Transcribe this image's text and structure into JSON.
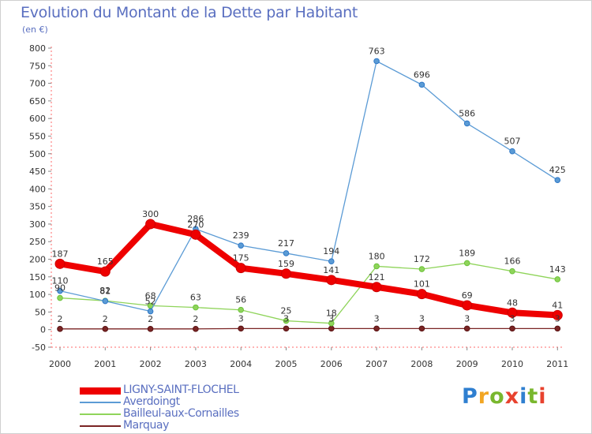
{
  "header": {
    "title": "Evolution du Montant de la Dette par Habitant",
    "unit": "(en €)"
  },
  "brand": {
    "text": "Proxiti",
    "colors": [
      "#2f7fd0",
      "#f2a623",
      "#79b72e",
      "#e8422e",
      "#2f7fd0",
      "#79b72e",
      "#e8422e"
    ]
  },
  "chart_data": {
    "type": "line",
    "x": [
      "2000",
      "2001",
      "2002",
      "2003",
      "2004",
      "2005",
      "2006",
      "2007",
      "2008",
      "2009",
      "2010",
      "2011"
    ],
    "ylim": [
      -50,
      800
    ],
    "yticks": [
      -50,
      0,
      50,
      100,
      150,
      200,
      250,
      300,
      350,
      400,
      450,
      500,
      550,
      600,
      650,
      700,
      750,
      800
    ],
    "grid": false,
    "legend_position": "bottom-left",
    "series": [
      {
        "name": "LIGNY-SAINT-FLOCHEL",
        "color": "#ee0000",
        "values": [
          187,
          165,
          300,
          270,
          175,
          159,
          141,
          121,
          101,
          69,
          48,
          41
        ]
      },
      {
        "name": "Averdoingt",
        "color": "#5b9bd5",
        "values": [
          110,
          81,
          52,
          286,
          239,
          217,
          194,
          763,
          696,
          586,
          507,
          425
        ]
      },
      {
        "name": "Bailleul-aux-Cornailles",
        "color": "#8fd45a",
        "values": [
          90,
          82,
          68,
          63,
          56,
          25,
          18,
          180,
          172,
          189,
          166,
          143
        ]
      },
      {
        "name": "Marquay",
        "color": "#7a2424",
        "values": [
          2,
          2,
          2,
          2,
          3,
          3,
          3,
          3,
          3,
          3,
          3,
          3
        ]
      }
    ]
  }
}
